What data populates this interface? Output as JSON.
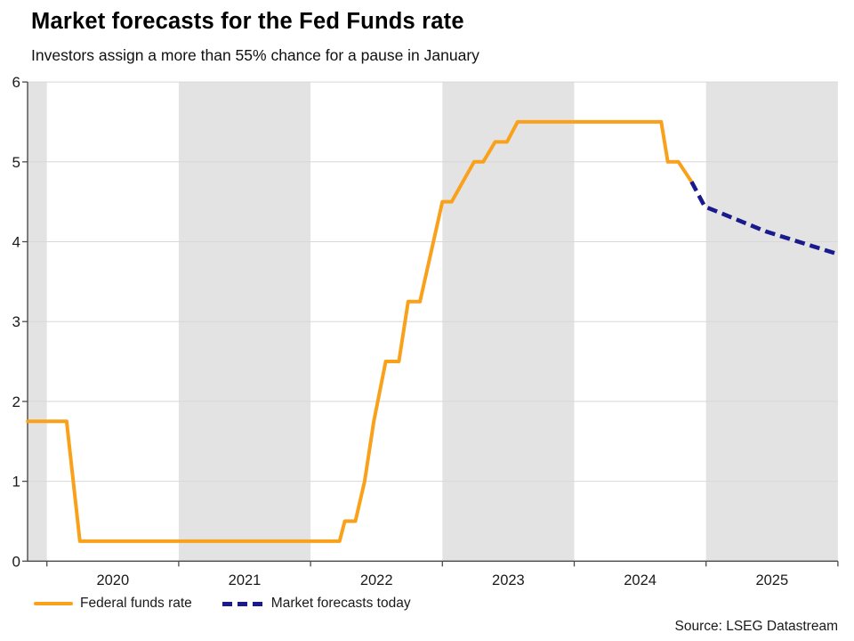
{
  "title": "Market forecasts for the Fed Funds rate",
  "subtitle": "Investors assign a more than 55% chance for a pause in January",
  "source": "Source: LSEG Datastream",
  "colors": {
    "fed_funds": "#F9A11B",
    "forecast": "#1A1A8E",
    "band": "#E3E3E3",
    "grid": "#D8D8D8",
    "axis": "#4a4a4a",
    "text": "#1a1a1a"
  },
  "legend": {
    "items": [
      {
        "label": "Federal funds rate"
      },
      {
        "label": "Market forecasts today"
      }
    ]
  },
  "chart_data": {
    "type": "line",
    "title": "Market forecasts for the Fed Funds rate",
    "subtitle": "Investors assign a more than 55% chance for a pause in January",
    "xlabel": "",
    "ylabel": "",
    "grid": "horizontal",
    "legend_position": "bottom-left",
    "x_axis": {
      "range": [
        2019.85,
        2026.0
      ],
      "tick_years": [
        2020,
        2021,
        2022,
        2023,
        2024,
        2025,
        2026
      ],
      "label_years": [
        2020,
        2021,
        2022,
        2023,
        2024,
        2025
      ]
    },
    "y_axis": {
      "range": [
        0,
        6
      ],
      "ticks": [
        0,
        1,
        2,
        3,
        4,
        5,
        6
      ],
      "gridlines": [
        1,
        2,
        3,
        4,
        5,
        6
      ]
    },
    "shaded_year_bands": [
      [
        2019.85,
        2020
      ],
      [
        2021,
        2022
      ],
      [
        2023,
        2024
      ],
      [
        2025,
        2026
      ]
    ],
    "series": [
      {
        "name": "Federal funds rate",
        "style": "solid",
        "color_key": "fed_funds",
        "width": 4,
        "dash": null,
        "points": [
          [
            2019.855,
            1.75
          ],
          [
            2020.15,
            1.75
          ],
          [
            2020.25,
            0.25
          ],
          [
            2022.22,
            0.25
          ],
          [
            2022.26,
            0.5
          ],
          [
            2022.34,
            0.5
          ],
          [
            2022.41,
            1.0
          ],
          [
            2022.48,
            1.75
          ],
          [
            2022.57,
            2.5
          ],
          [
            2022.67,
            2.5
          ],
          [
            2022.74,
            3.25
          ],
          [
            2022.83,
            3.25
          ],
          [
            2023.0,
            4.5
          ],
          [
            2023.07,
            4.5
          ],
          [
            2023.24,
            5.0
          ],
          [
            2023.31,
            5.0
          ],
          [
            2023.4,
            5.25
          ],
          [
            2023.49,
            5.25
          ],
          [
            2023.57,
            5.5
          ],
          [
            2024.66,
            5.5
          ],
          [
            2024.71,
            5.0
          ],
          [
            2024.79,
            5.0
          ],
          [
            2024.89,
            4.75
          ]
        ]
      },
      {
        "name": "Market forecasts today",
        "style": "dashed",
        "color_key": "forecast",
        "width": 4.6,
        "dash": "11.5 6",
        "points": [
          [
            2024.89,
            4.75
          ],
          [
            2024.99,
            4.44
          ],
          [
            2025.45,
            4.13
          ],
          [
            2025.99,
            3.85
          ]
        ]
      }
    ]
  }
}
